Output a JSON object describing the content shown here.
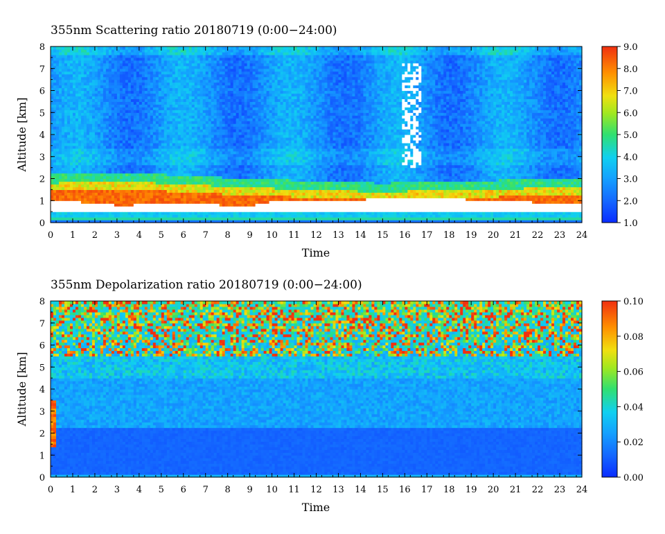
{
  "chart_data": [
    {
      "type": "heatmap",
      "title": "355nm Scattering ratio  20180719 (0:00−24:00)",
      "xlabel": "Time",
      "ylabel": "Altitude [km]",
      "xlim": [
        0,
        24
      ],
      "ylim": [
        0,
        8
      ],
      "x_ticks": [
        "0",
        "1",
        "2",
        "3",
        "4",
        "5",
        "6",
        "7",
        "8",
        "9",
        "10",
        "11",
        "12",
        "13",
        "14",
        "15",
        "16",
        "17",
        "18",
        "19",
        "20",
        "21",
        "22",
        "23",
        "24"
      ],
      "y_ticks": [
        "0",
        "1",
        "2",
        "3",
        "4",
        "5",
        "6",
        "7",
        "8"
      ],
      "colorbar": {
        "range": [
          1.0,
          9.0
        ],
        "ticks": [
          "1.0",
          "2.0",
          "3.0",
          "4.0",
          "5.0",
          "6.0",
          "7.0",
          "8.0",
          "9.0"
        ]
      },
      "features": {
        "boundary_layer_top_km": [
          [
            0,
            1.8
          ],
          [
            3,
            1.9
          ],
          [
            6,
            1.75
          ],
          [
            9,
            1.6
          ],
          [
            12,
            1.5
          ],
          [
            15,
            1.4
          ],
          [
            18,
            1.5
          ],
          [
            21,
            1.55
          ],
          [
            24,
            1.65
          ]
        ],
        "boundary_layer_bottom_km": [
          [
            0,
            1.05
          ],
          [
            3,
            0.8
          ],
          [
            6,
            0.85
          ],
          [
            9,
            0.78
          ],
          [
            10,
            0.95
          ],
          [
            13,
            1.0
          ],
          [
            16,
            1.15
          ],
          [
            18,
            1.1
          ],
          [
            21,
            0.95
          ],
          [
            24,
            0.9
          ]
        ],
        "missing_data_column": {
          "time": [
            15.9,
            16.7
          ],
          "altitude_km": [
            2.5,
            7.2
          ]
        },
        "gap_altitude_km": [
          0.45,
          0.95
        ]
      }
    },
    {
      "type": "heatmap",
      "title": "355nm Depolarization ratio  20180719 (0:00−24:00)",
      "xlabel": "Time",
      "ylabel": "Altitude [km]",
      "xlim": [
        0,
        24
      ],
      "ylim": [
        0,
        8
      ],
      "x_ticks": [
        "0",
        "1",
        "2",
        "3",
        "4",
        "5",
        "6",
        "7",
        "8",
        "9",
        "10",
        "11",
        "12",
        "13",
        "14",
        "15",
        "16",
        "17",
        "18",
        "19",
        "20",
        "21",
        "22",
        "23",
        "24"
      ],
      "y_ticks": [
        "0",
        "1",
        "2",
        "3",
        "4",
        "5",
        "6",
        "7",
        "8"
      ],
      "colorbar": {
        "range": [
          0.0,
          0.1
        ],
        "ticks": [
          "0.00",
          "0.02",
          "0.04",
          "0.06",
          "0.08",
          "0.10"
        ]
      },
      "features": {
        "low_depol_layer_top_km": 2.3,
        "noisy_high_depol_above_km": 5.5
      }
    }
  ],
  "colors": {
    "jet": [
      "#1040ff",
      "#1070ff",
      "#10a8ff",
      "#10d8f0",
      "#20e8c0",
      "#40e060",
      "#90e020",
      "#e8e810",
      "#ffc000",
      "#ff8000",
      "#f04010"
    ]
  }
}
